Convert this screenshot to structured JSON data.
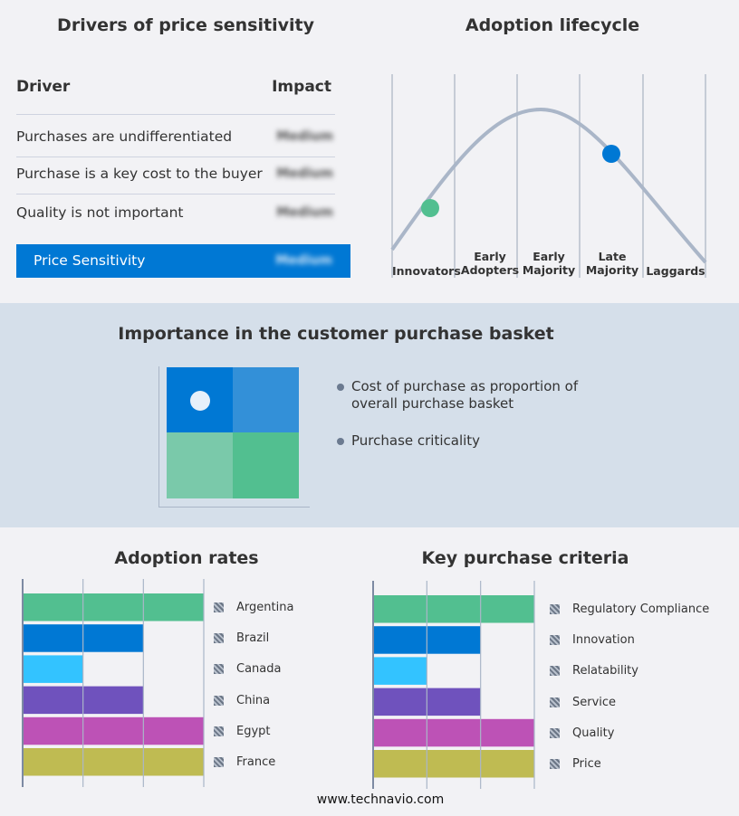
{
  "drivers": {
    "title": "Drivers of price sensitivity",
    "col_driver": "Driver",
    "col_impact": "Impact",
    "rows": [
      {
        "driver": "Purchases are undifferentiated",
        "impact": "Medium"
      },
      {
        "driver": "Purchase is a key cost to the buyer",
        "impact": "Medium"
      },
      {
        "driver": "Quality is not important",
        "impact": "Medium"
      }
    ],
    "summary": {
      "label": "Price Sensitivity",
      "impact": "Medium"
    },
    "accent": "#0078d4"
  },
  "lifecycle": {
    "title": "Adoption lifecycle",
    "stages": [
      "Innovators",
      "Early Adopters",
      "Early Majority",
      "Late Majority",
      "Laggards"
    ],
    "markers": [
      {
        "stage": "Innovators",
        "color": "#52bf90"
      },
      {
        "stage": "Late Majority",
        "color": "#0078d4"
      }
    ]
  },
  "basket": {
    "title": "Importance in the customer purchase basket",
    "legend": [
      "Cost of purchase as proportion of overall purchase basket",
      "Purchase criticality"
    ],
    "colors": [
      "#0078d4",
      "#3390d8",
      "#7ac9aa",
      "#52bf90"
    ]
  },
  "chart_data": [
    {
      "type": "bar",
      "title": "Adoption rates",
      "categories": [
        "Argentina",
        "Brazil",
        "Canada",
        "China",
        "Egypt",
        "France"
      ],
      "values": [
        3,
        2,
        1,
        2,
        3,
        3
      ],
      "xlim": [
        0,
        3
      ],
      "grid": true,
      "legend": "right",
      "colors": [
        "#52bf90",
        "#0078d4",
        "#33c3ff",
        "#6f52bd",
        "#bd52b6",
        "#bfbb52"
      ]
    },
    {
      "type": "bar",
      "title": "Key purchase criteria",
      "categories": [
        "Regulatory Compliance",
        "Innovation",
        "Relatability",
        "Service",
        "Quality",
        "Price"
      ],
      "values": [
        3,
        2,
        1,
        2,
        3,
        3
      ],
      "xlim": [
        0,
        3
      ],
      "grid": true,
      "legend": "right",
      "colors": [
        "#52bf90",
        "#0078d4",
        "#33c3ff",
        "#6f52bd",
        "#bd52b6",
        "#bfbb52"
      ]
    }
  ],
  "footer": "www.technavio.com"
}
